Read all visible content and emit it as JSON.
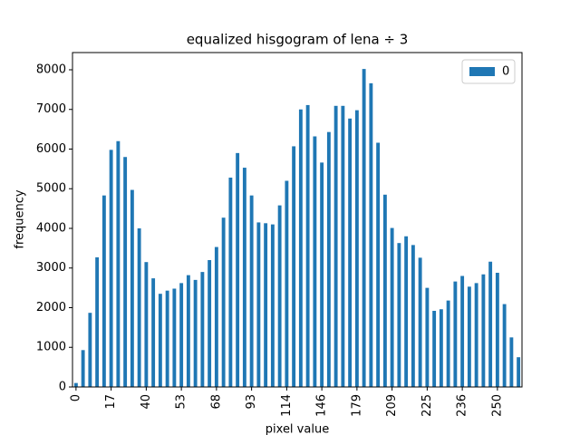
{
  "chart_data": {
    "type": "bar",
    "title": "equalized hisgogram of lena ÷ 3",
    "x_label": "pixel value",
    "y_label": "frequency",
    "categories": [
      "0",
      null,
      null,
      null,
      null,
      "17",
      null,
      null,
      null,
      null,
      "40",
      null,
      null,
      null,
      null,
      "53",
      null,
      null,
      null,
      null,
      "68",
      null,
      null,
      null,
      null,
      "93",
      null,
      null,
      null,
      null,
      "114",
      null,
      null,
      null,
      null,
      "146",
      null,
      null,
      null,
      null,
      "179",
      null,
      null,
      null,
      null,
      "209",
      null,
      null,
      null,
      null,
      "225",
      null,
      null,
      null,
      null,
      "236",
      null,
      null,
      null,
      null,
      "250",
      null,
      null,
      null
    ],
    "series": [
      {
        "name": "0",
        "color": "#1f77b4",
        "values": [
          100,
          930,
          1870,
          3270,
          4830,
          5980,
          6200,
          5800,
          4970,
          4000,
          3150,
          2740,
          2350,
          2430,
          2480,
          2620,
          2820,
          2700,
          2900,
          3200,
          3530,
          4270,
          5280,
          5900,
          5530,
          4830,
          4150,
          4130,
          4100,
          4580,
          5200,
          6070,
          7000,
          7110,
          6320,
          5660,
          6430,
          7090,
          7090,
          6770,
          6980,
          8020,
          7660,
          6160,
          4850,
          4010,
          3630,
          3800,
          3580,
          3260,
          2500,
          1920,
          1960,
          2180,
          2660,
          2800,
          2530,
          2620,
          2840,
          3160,
          2880,
          2090,
          1250,
          750
        ]
      }
    ],
    "ylim": [
      0,
      8434
    ],
    "yticks": [
      0,
      1000,
      2000,
      3000,
      4000,
      5000,
      6000,
      7000,
      8000
    ],
    "legend": "upper right",
    "grid": false
  }
}
